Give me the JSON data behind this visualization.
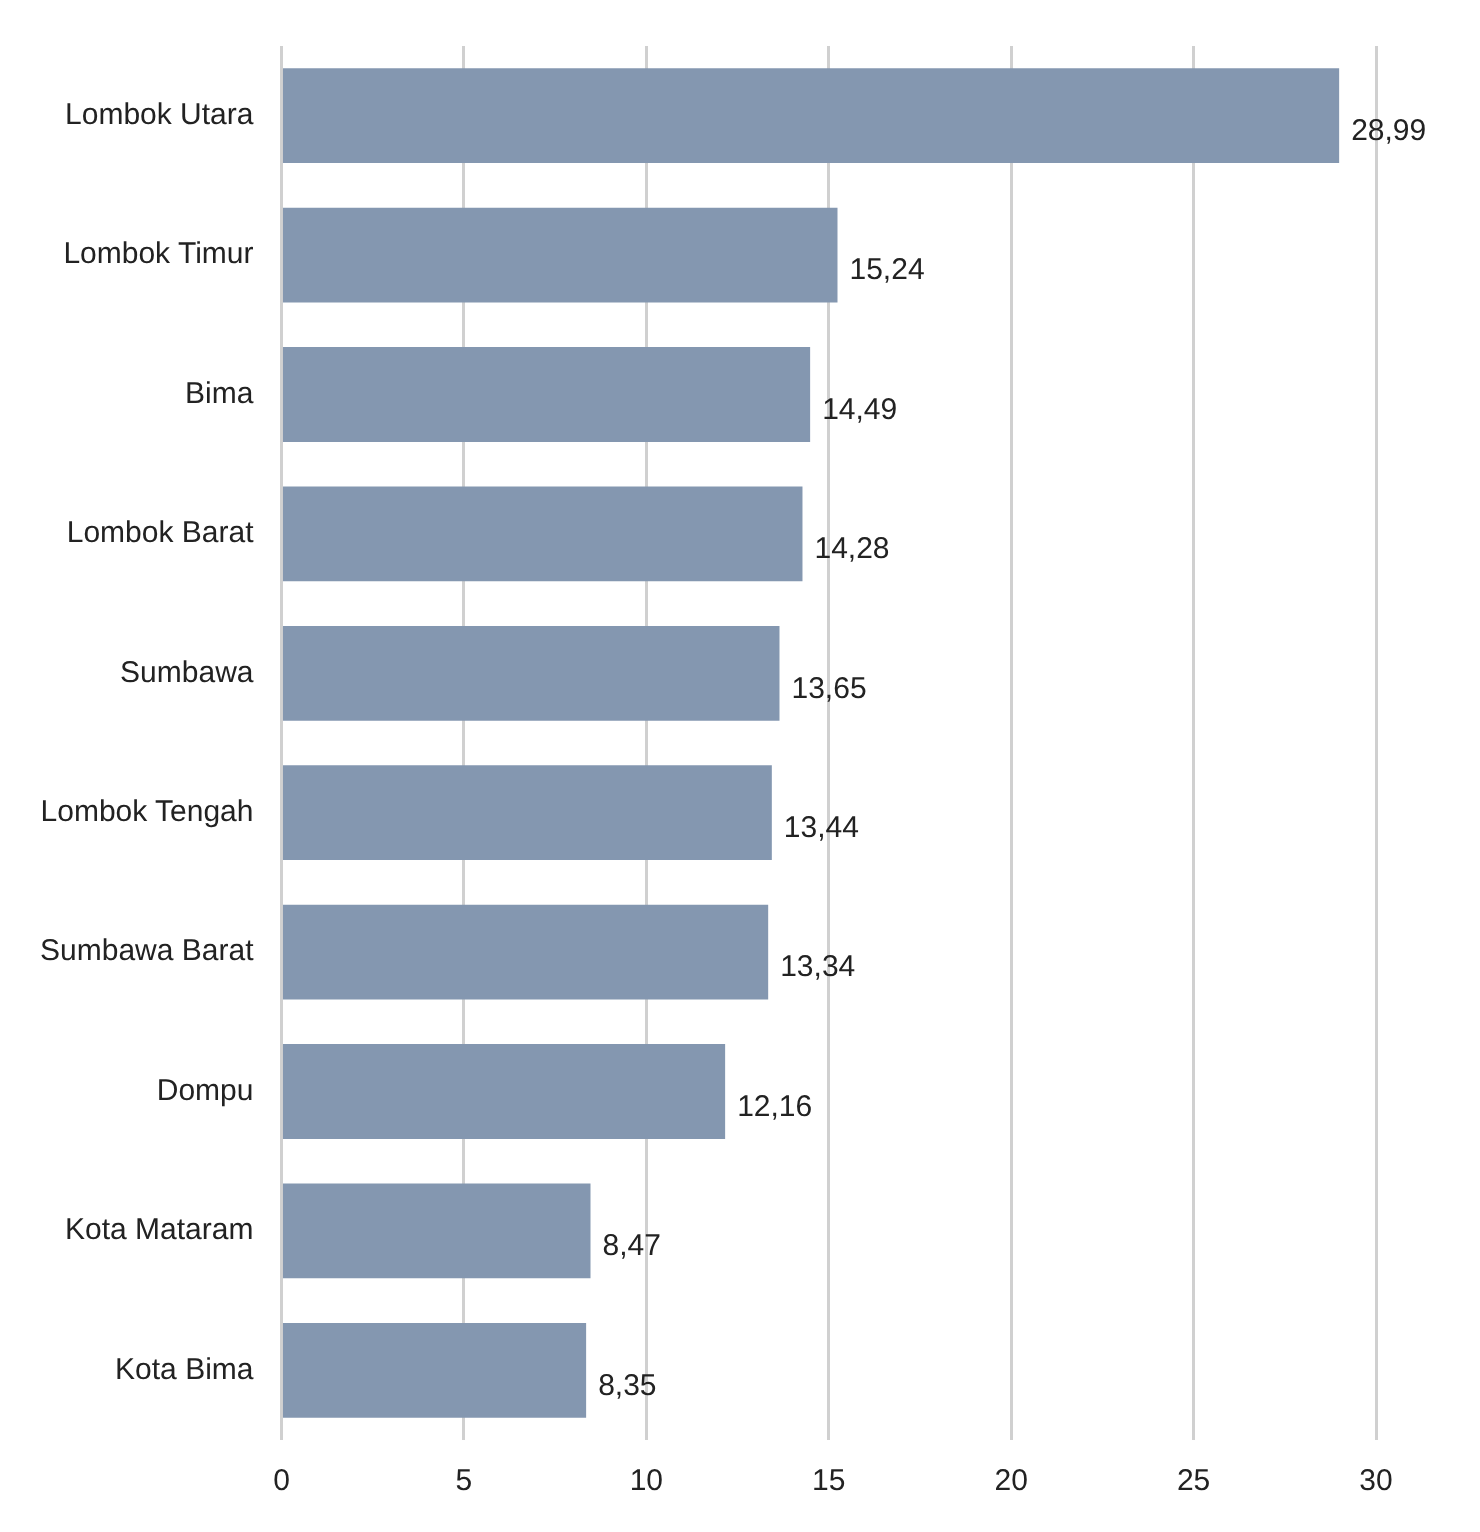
{
  "chart_data": {
    "type": "bar",
    "orientation": "horizontal",
    "categories": [
      "Lombok Utara",
      "Lombok Timur",
      "Bima",
      "Lombok Barat",
      "Sumbawa",
      "Lombok Tengah",
      "Sumbawa Barat",
      "Dompu",
      "Kota Mataram",
      "Kota Bima"
    ],
    "values": [
      28.99,
      15.24,
      14.49,
      14.28,
      13.65,
      13.44,
      13.34,
      12.16,
      8.47,
      8.35
    ],
    "value_labels": [
      "28,99",
      "15,24",
      "14,49",
      "14,28",
      "13,65",
      "13,44",
      "13,34",
      "12,16",
      "8,47",
      "8,35"
    ],
    "color": "#8497b0",
    "xlim": [
      0,
      30
    ],
    "xticks": [
      0,
      5,
      10,
      15,
      20,
      25,
      30
    ],
    "grid": "x",
    "legend": false
  }
}
